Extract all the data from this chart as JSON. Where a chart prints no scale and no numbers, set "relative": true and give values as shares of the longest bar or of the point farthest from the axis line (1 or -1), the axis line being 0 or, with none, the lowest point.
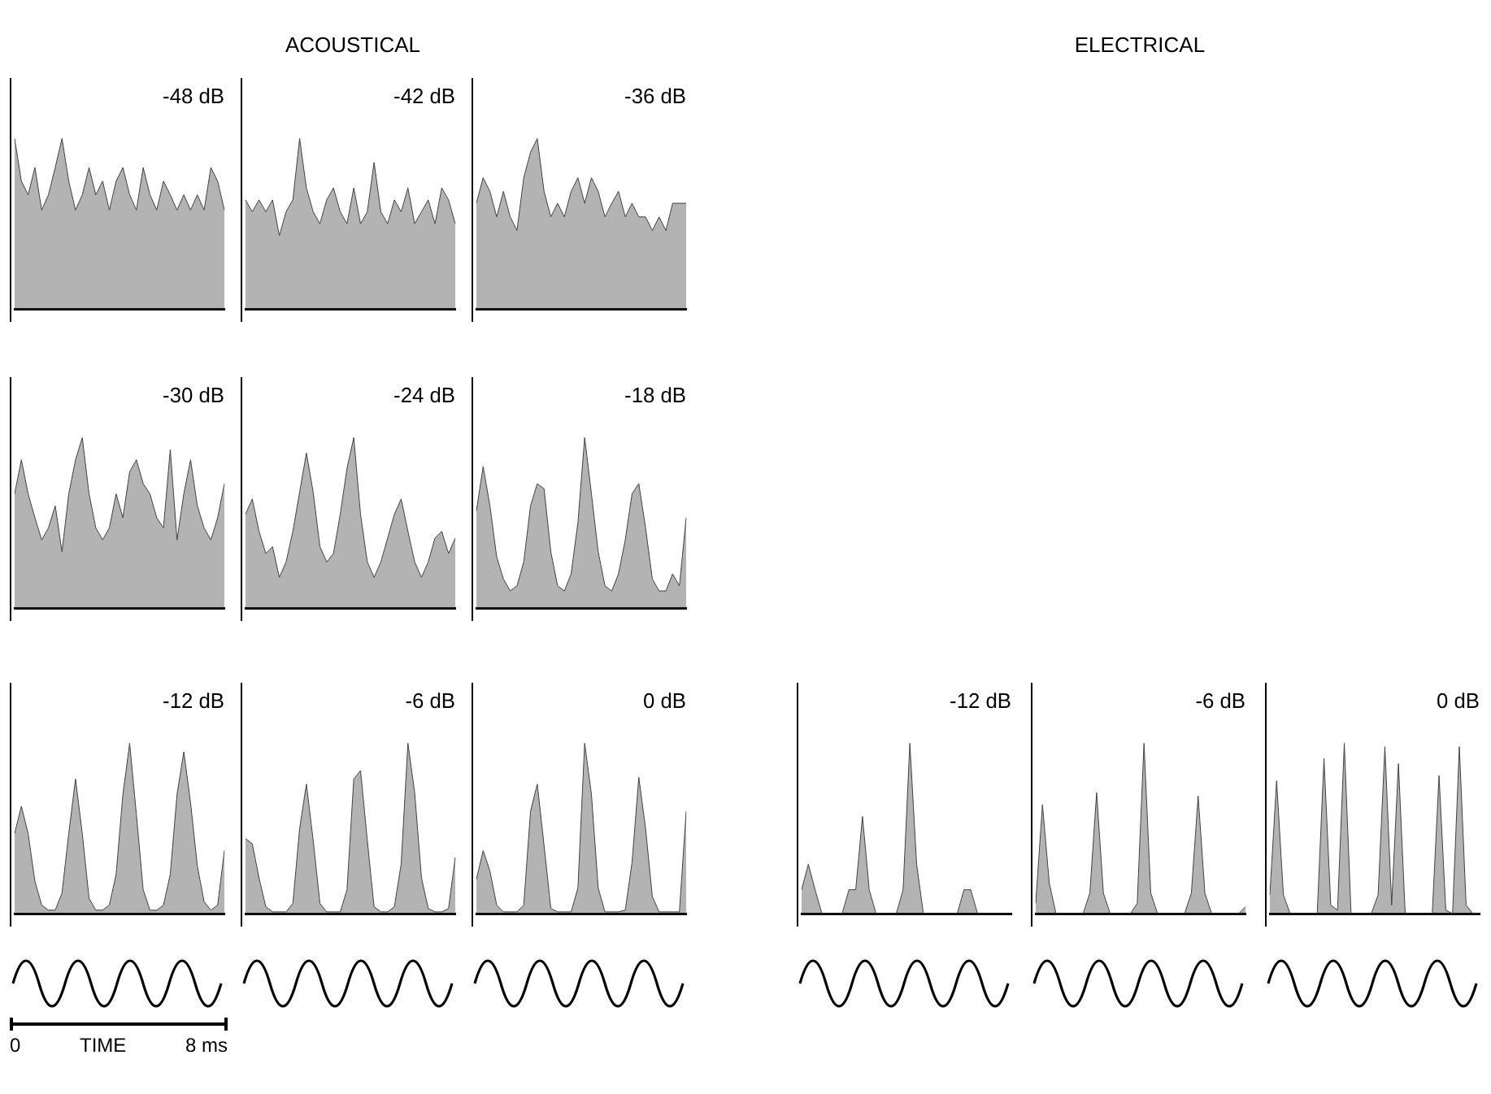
{
  "chart_data": [
    {
      "type": "area",
      "title": "-48 dB",
      "annotations": [
        "ACOUSTICAL"
      ],
      "relative": true,
      "color": "#404040",
      "categories": [
        null,
        null,
        null,
        null,
        null,
        null,
        null,
        null,
        null,
        null,
        null,
        null,
        null,
        null,
        null,
        null,
        null,
        null,
        null,
        null,
        null,
        null,
        null,
        null,
        null,
        null,
        null,
        null,
        null,
        null,
        null,
        null
      ],
      "values": [
        1,
        0.75,
        0.67,
        0.83,
        0.58,
        0.67,
        0.83,
        1,
        0.75,
        0.58,
        0.67,
        0.83,
        0.67,
        0.75,
        0.58,
        0.75,
        0.83,
        0.67,
        0.58,
        0.83,
        0.67,
        0.58,
        0.75,
        0.67,
        0.58,
        0.67,
        0.58,
        0.67,
        0.58,
        0.83,
        0.75,
        0.58
      ]
    },
    {
      "type": "area",
      "title": "-42 dB",
      "relative": true,
      "color": "#404040",
      "categories": [
        null,
        null,
        null,
        null,
        null,
        null,
        null,
        null,
        null,
        null,
        null,
        null,
        null,
        null,
        null,
        null,
        null,
        null,
        null,
        null,
        null,
        null,
        null,
        null,
        null,
        null,
        null,
        null,
        null,
        null,
        null,
        null
      ],
      "values": [
        0.64,
        0.57,
        0.64,
        0.57,
        0.64,
        0.43,
        0.57,
        0.64,
        1,
        0.71,
        0.57,
        0.5,
        0.64,
        0.71,
        0.57,
        0.5,
        0.71,
        0.5,
        0.57,
        0.86,
        0.57,
        0.5,
        0.64,
        0.57,
        0.71,
        0.5,
        0.57,
        0.64,
        0.5,
        0.71,
        0.64,
        0.5
      ]
    },
    {
      "type": "area",
      "title": "-36 dB",
      "relative": true,
      "color": "#404040",
      "categories": [
        null,
        null,
        null,
        null,
        null,
        null,
        null,
        null,
        null,
        null,
        null,
        null,
        null,
        null,
        null,
        null,
        null,
        null,
        null,
        null,
        null,
        null,
        null,
        null,
        null,
        null,
        null,
        null,
        null,
        null,
        null,
        null
      ],
      "values": [
        0.62,
        0.77,
        0.69,
        0.54,
        0.69,
        0.54,
        0.46,
        0.77,
        0.92,
        1,
        0.69,
        0.54,
        0.62,
        0.54,
        0.69,
        0.77,
        0.62,
        0.77,
        0.69,
        0.54,
        0.62,
        0.69,
        0.54,
        0.62,
        0.54,
        0.54,
        0.46,
        0.54,
        0.46,
        0.62,
        0.62,
        0.62
      ]
    },
    {
      "type": "area",
      "title": "-30 dB",
      "relative": true,
      "color": "#404040",
      "categories": [
        null,
        null,
        null,
        null,
        null,
        null,
        null,
        null,
        null,
        null,
        null,
        null,
        null,
        null,
        null,
        null,
        null,
        null,
        null,
        null,
        null,
        null,
        null,
        null,
        null,
        null,
        null,
        null,
        null,
        null,
        null,
        null
      ],
      "values": [
        0.67,
        0.87,
        0.67,
        0.53,
        0.4,
        0.47,
        0.6,
        0.33,
        0.67,
        0.87,
        1,
        0.67,
        0.47,
        0.4,
        0.47,
        0.67,
        0.53,
        0.8,
        0.87,
        0.73,
        0.67,
        0.53,
        0.47,
        0.93,
        0.4,
        0.67,
        0.87,
        0.6,
        0.47,
        0.4,
        0.53,
        0.73
      ]
    },
    {
      "type": "area",
      "title": "-24 dB",
      "relative": true,
      "color": "#404040",
      "categories": [
        null,
        null,
        null,
        null,
        null,
        null,
        null,
        null,
        null,
        null,
        null,
        null,
        null,
        null,
        null,
        null,
        null,
        null,
        null,
        null,
        null,
        null,
        null,
        null,
        null,
        null,
        null,
        null,
        null,
        null,
        null,
        null
      ],
      "values": [
        0.55,
        0.64,
        0.45,
        0.32,
        0.36,
        0.18,
        0.27,
        0.45,
        0.68,
        0.91,
        0.68,
        0.36,
        0.27,
        0.32,
        0.55,
        0.82,
        1,
        0.55,
        0.27,
        0.18,
        0.27,
        0.41,
        0.55,
        0.64,
        0.45,
        0.27,
        0.18,
        0.27,
        0.41,
        0.45,
        0.32,
        0.41
      ]
    },
    {
      "type": "area",
      "title": "-18 dB",
      "relative": true,
      "color": "#404040",
      "categories": [
        null,
        null,
        null,
        null,
        null,
        null,
        null,
        null,
        null,
        null,
        null,
        null,
        null,
        null,
        null,
        null,
        null,
        null,
        null,
        null,
        null,
        null,
        null,
        null,
        null,
        null,
        null,
        null,
        null,
        null,
        null,
        null
      ],
      "values": [
        0.57,
        0.83,
        0.6,
        0.3,
        0.17,
        0.1,
        0.13,
        0.27,
        0.6,
        0.73,
        0.7,
        0.33,
        0.13,
        0.1,
        0.2,
        0.5,
        1,
        0.67,
        0.33,
        0.13,
        0.1,
        0.2,
        0.4,
        0.67,
        0.73,
        0.47,
        0.17,
        0.1,
        0.1,
        0.2,
        0.13,
        0.53
      ]
    },
    {
      "type": "area",
      "title": "-12 dB",
      "annotations": [
        "0",
        "TIME",
        "8 ms"
      ],
      "relative": true,
      "color": "#404040",
      "categories": [
        null,
        null,
        null,
        null,
        null,
        null,
        null,
        null,
        null,
        null,
        null,
        null,
        null,
        null,
        null,
        null,
        null,
        null,
        null,
        null,
        null,
        null,
        null,
        null,
        null,
        null,
        null,
        null,
        null,
        null,
        null,
        null
      ],
      "values": [
        0.47,
        0.63,
        0.47,
        0.19,
        0.05,
        0.02,
        0.02,
        0.12,
        0.47,
        0.79,
        0.47,
        0.09,
        0.02,
        0.02,
        0.05,
        0.23,
        0.7,
        1,
        0.58,
        0.14,
        0.02,
        0.02,
        0.05,
        0.23,
        0.7,
        0.95,
        0.65,
        0.28,
        0.07,
        0.02,
        0.05,
        0.37
      ]
    },
    {
      "type": "area",
      "title": "-6 dB",
      "relative": true,
      "color": "#404040",
      "categories": [
        null,
        null,
        null,
        null,
        null,
        null,
        null,
        null,
        null,
        null,
        null,
        null,
        null,
        null,
        null,
        null,
        null,
        null,
        null,
        null,
        null,
        null,
        null,
        null,
        null,
        null,
        null,
        null,
        null,
        null,
        null,
        null
      ],
      "values": [
        0.44,
        0.41,
        0.21,
        0.04,
        0.01,
        0.01,
        0.01,
        0.06,
        0.5,
        0.76,
        0.43,
        0.06,
        0.01,
        0.01,
        0.01,
        0.14,
        0.79,
        0.84,
        0.43,
        0.04,
        0.01,
        0.01,
        0.04,
        0.29,
        1,
        0.71,
        0.21,
        0.03,
        0.01,
        0.01,
        0.03,
        0.33
      ]
    },
    {
      "type": "area",
      "title": "0 dB",
      "relative": true,
      "color": "#404040",
      "categories": [
        null,
        null,
        null,
        null,
        null,
        null,
        null,
        null,
        null,
        null,
        null,
        null,
        null,
        null,
        null,
        null,
        null,
        null,
        null,
        null,
        null,
        null,
        null,
        null,
        null,
        null,
        null,
        null,
        null,
        null,
        null,
        null
      ],
      "values": [
        0.2,
        0.37,
        0.25,
        0.05,
        0.01,
        0.01,
        0.01,
        0.05,
        0.6,
        0.76,
        0.4,
        0.03,
        0.01,
        0.01,
        0.01,
        0.15,
        1.0,
        0.7,
        0.15,
        0.01,
        0.01,
        0.01,
        0.02,
        0.3,
        0.8,
        0.5,
        0.1,
        0.01,
        0.01,
        0.01,
        0.01,
        0.6
      ]
    },
    {
      "type": "area",
      "title": "-12 dB",
      "annotations": [
        "ELECTRICAL"
      ],
      "relative": true,
      "color": "#404040",
      "categories": [
        null,
        null,
        null,
        null,
        null,
        null,
        null,
        null,
        null,
        null,
        null,
        null,
        null,
        null,
        null,
        null,
        null,
        null,
        null,
        null,
        null,
        null,
        null,
        null,
        null,
        null,
        null,
        null,
        null,
        null,
        null,
        null
      ],
      "values": [
        0.14,
        0.29,
        0.14,
        0,
        0,
        0,
        0,
        0.14,
        0.14,
        0.57,
        0.14,
        0,
        0,
        0,
        0,
        0.14,
        1,
        0.29,
        0,
        0,
        0,
        0,
        0,
        0,
        0.14,
        0.14,
        0,
        0,
        0,
        0,
        0,
        0
      ]
    },
    {
      "type": "area",
      "title": "-6 dB",
      "relative": true,
      "color": "#404040",
      "categories": [
        null,
        null,
        null,
        null,
        null,
        null,
        null,
        null,
        null,
        null,
        null,
        null,
        null,
        null,
        null,
        null,
        null,
        null,
        null,
        null,
        null,
        null,
        null,
        null,
        null,
        null,
        null,
        null,
        null,
        null,
        null,
        null
      ],
      "values": [
        0.06,
        0.64,
        0.18,
        0,
        0,
        0,
        0,
        0,
        0.12,
        0.71,
        0.12,
        0,
        0,
        0,
        0,
        0.06,
        1,
        0.12,
        0,
        0,
        0,
        0,
        0,
        0.12,
        0.69,
        0.12,
        0,
        0,
        0,
        0,
        0,
        0.04
      ]
    },
    {
      "type": "area",
      "title": "0 dB",
      "relative": true,
      "color": "#404040",
      "categories": [
        null,
        null,
        null,
        null,
        null,
        null,
        null,
        null,
        null,
        null,
        null,
        null,
        null,
        null,
        null,
        null,
        null,
        null,
        null,
        null,
        null,
        null,
        null,
        null,
        null,
        null,
        null,
        null,
        null,
        null,
        null,
        null
      ],
      "values": [
        0.11,
        0.78,
        0.11,
        0,
        0,
        0,
        0,
        0,
        0.91,
        0.05,
        0.02,
        1,
        0,
        0,
        0,
        0,
        0.11,
        0.98,
        0.05,
        0.88,
        0,
        0,
        0,
        0,
        0,
        0.81,
        0.02,
        0,
        0.98,
        0.05,
        0,
        0
      ]
    }
  ]
}
